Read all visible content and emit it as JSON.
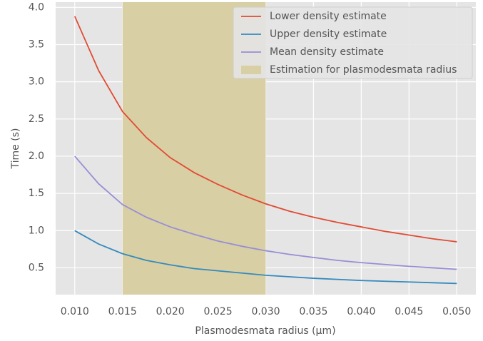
{
  "chart_data": {
    "type": "line",
    "x_label": "Plasmodesmata radius (μm)",
    "y_label": "Time (s)",
    "x": [
      0.01,
      0.0125,
      0.015,
      0.0175,
      0.02,
      0.0225,
      0.025,
      0.0275,
      0.03,
      0.0325,
      0.035,
      0.0375,
      0.04,
      0.0425,
      0.045,
      0.0475,
      0.05
    ],
    "series": [
      {
        "name": "Lower density estimate",
        "color": "#e24a33",
        "values": [
          3.88,
          3.15,
          2.6,
          2.25,
          1.98,
          1.78,
          1.62,
          1.48,
          1.36,
          1.26,
          1.18,
          1.11,
          1.05,
          0.99,
          0.94,
          0.89,
          0.85
        ]
      },
      {
        "name": "Upper density estimate",
        "color": "#348abd",
        "values": [
          1.0,
          0.82,
          0.69,
          0.6,
          0.54,
          0.49,
          0.46,
          0.43,
          0.4,
          0.38,
          0.36,
          0.345,
          0.33,
          0.32,
          0.31,
          0.3,
          0.29
        ]
      },
      {
        "name": "Mean density estimate",
        "color": "#988ed5",
        "values": [
          2.0,
          1.63,
          1.35,
          1.18,
          1.05,
          0.95,
          0.86,
          0.79,
          0.73,
          0.68,
          0.64,
          0.6,
          0.57,
          0.545,
          0.52,
          0.5,
          0.48
        ]
      }
    ],
    "span": {
      "name": "Estimation for plasmodesmata radius",
      "color": "#d9cfa5",
      "x": [
        0.015,
        0.03
      ]
    },
    "xlim": [
      0.008,
      0.052
    ],
    "ylim": [
      0.14,
      4.07
    ],
    "xticks": [
      {
        "value": 0.01,
        "label": "0.010"
      },
      0.015,
      {
        "value": 0.02,
        "label": "0.020"
      },
      0.025,
      {
        "value": 0.03,
        "label": "0.030"
      },
      0.035,
      {
        "value": 0.04,
        "label": "0.040"
      },
      0.045,
      {
        "value": 0.05,
        "label": "0.050"
      }
    ],
    "yticks": [
      0.5,
      {
        "value": 1,
        "label": "1.0"
      },
      1.5,
      {
        "value": 2,
        "label": "2.0"
      },
      2.5,
      {
        "value": 3,
        "label": "3.0"
      },
      3.5,
      {
        "value": 4,
        "label": "4.0"
      }
    ],
    "grid": true,
    "legend": "upper right"
  }
}
